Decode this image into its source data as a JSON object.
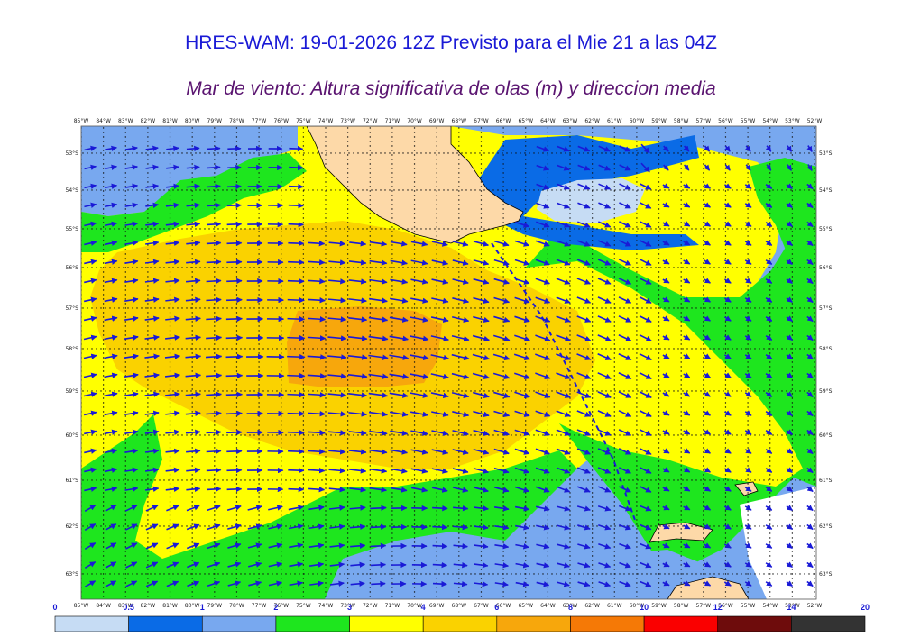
{
  "title": "HRES-WAM: 19-01-2026 12Z Previsto para el Mie 21 a las 04Z",
  "subtitle": "Mar de viento: Altura significativa de olas (m) y direccion media",
  "longitude_labels": [
    "85°W",
    "84°W",
    "83°W",
    "82°W",
    "81°W",
    "80°W",
    "79°W",
    "78°W",
    "77°W",
    "76°W",
    "75°W",
    "74°W",
    "73°W",
    "72°W",
    "71°W",
    "70°W",
    "69°W",
    "68°W",
    "67°W",
    "66°W",
    "65°W",
    "64°W",
    "63°W",
    "62°W",
    "61°W",
    "60°W",
    "59°W",
    "58°W",
    "57°W",
    "56°W",
    "55°W",
    "54°W",
    "53°W",
    "52°W"
  ],
  "latitude_labels": [
    "53°S",
    "54°S",
    "55°S",
    "56°S",
    "57°S",
    "58°S",
    "59°S",
    "60°S",
    "61°S",
    "62°S",
    "63°S"
  ],
  "colorbar": {
    "tick_labels": [
      "0",
      "0.5",
      "1",
      "2",
      "3",
      "4",
      "6",
      "8",
      "10",
      "12",
      "14",
      "20"
    ],
    "bins": [
      {
        "from": "0",
        "to": "0.5",
        "color": "#c6dcf4"
      },
      {
        "from": "0.5",
        "to": "1",
        "color": "#0a6be6"
      },
      {
        "from": "1",
        "to": "2",
        "color": "#78a8ef"
      },
      {
        "from": "2",
        "to": "3",
        "color": "#1ee61e"
      },
      {
        "from": "3",
        "to": "4",
        "color": "#ffff00"
      },
      {
        "from": "4",
        "to": "6",
        "color": "#fad200"
      },
      {
        "from": "6",
        "to": "8",
        "color": "#f7a70c"
      },
      {
        "from": "8",
        "to": "10",
        "color": "#f57906"
      },
      {
        "from": "10",
        "to": "12",
        "color": "#fa0000"
      },
      {
        "from": "12",
        "to": "14",
        "color": "#6e0c0c"
      },
      {
        "from": "14",
        "to": "20",
        "color": "#333333"
      }
    ]
  },
  "colors": {
    "land": "#fdd9a8",
    "arrow": "#1a1ad6",
    "title": "#1a1ad6",
    "subtitle": "#5a1470"
  }
}
